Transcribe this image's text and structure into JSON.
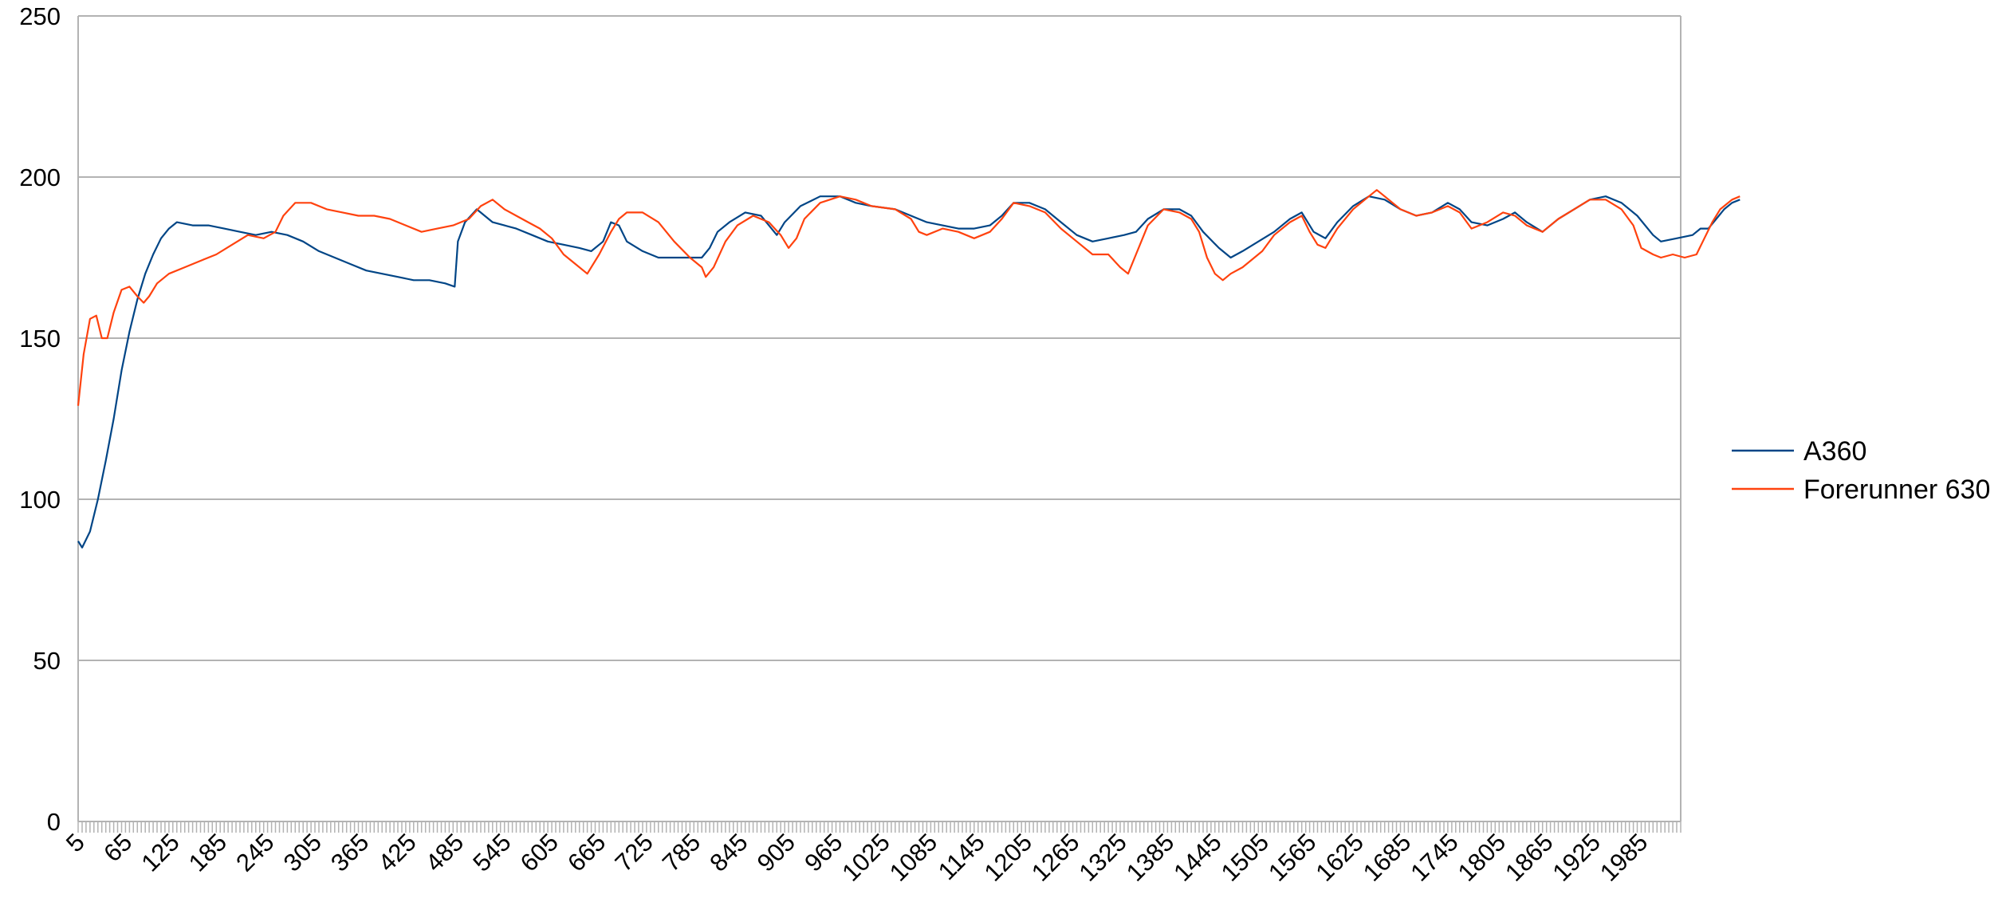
{
  "chart_data": {
    "type": "line",
    "title": "",
    "xlabel": "",
    "ylabel": "",
    "ylim": [
      0,
      250
    ],
    "yticks": [
      0,
      50,
      100,
      150,
      200,
      250
    ],
    "xlim": [
      5,
      2035
    ],
    "xtick_labels": [
      "5",
      "65",
      "125",
      "185",
      "245",
      "305",
      "365",
      "425",
      "485",
      "545",
      "605",
      "665",
      "725",
      "785",
      "845",
      "905",
      "965",
      "1025",
      "1085",
      "1145",
      "1205",
      "1265",
      "1325",
      "1385",
      "1445",
      "1505",
      "1565",
      "1625",
      "1685",
      "1745",
      "1805",
      "1865",
      "1925",
      "1985"
    ],
    "grid": true,
    "legend_position": "right",
    "series": [
      {
        "name": "A360",
        "color": "#004586",
        "points": [
          [
            5,
            87
          ],
          [
            10,
            85
          ],
          [
            20,
            90
          ],
          [
            30,
            100
          ],
          [
            40,
            112
          ],
          [
            50,
            125
          ],
          [
            60,
            140
          ],
          [
            70,
            152
          ],
          [
            80,
            162
          ],
          [
            90,
            170
          ],
          [
            100,
            176
          ],
          [
            110,
            181
          ],
          [
            120,
            184
          ],
          [
            130,
            186
          ],
          [
            150,
            185
          ],
          [
            170,
            185
          ],
          [
            190,
            184
          ],
          [
            210,
            183
          ],
          [
            230,
            182
          ],
          [
            250,
            183
          ],
          [
            270,
            182
          ],
          [
            290,
            180
          ],
          [
            310,
            177
          ],
          [
            330,
            175
          ],
          [
            350,
            173
          ],
          [
            370,
            171
          ],
          [
            390,
            170
          ],
          [
            410,
            169
          ],
          [
            430,
            168
          ],
          [
            450,
            168
          ],
          [
            470,
            167
          ],
          [
            482,
            166
          ],
          [
            486,
            180
          ],
          [
            495,
            186
          ],
          [
            510,
            190
          ],
          [
            520,
            188
          ],
          [
            530,
            186
          ],
          [
            545,
            185
          ],
          [
            560,
            184
          ],
          [
            580,
            182
          ],
          [
            600,
            180
          ],
          [
            620,
            179
          ],
          [
            640,
            178
          ],
          [
            655,
            177
          ],
          [
            670,
            180
          ],
          [
            680,
            186
          ],
          [
            690,
            185
          ],
          [
            700,
            180
          ],
          [
            720,
            177
          ],
          [
            740,
            175
          ],
          [
            760,
            175
          ],
          [
            780,
            175
          ],
          [
            795,
            175
          ],
          [
            805,
            178
          ],
          [
            815,
            183
          ],
          [
            830,
            186
          ],
          [
            850,
            189
          ],
          [
            870,
            188
          ],
          [
            880,
            185
          ],
          [
            890,
            182
          ],
          [
            900,
            186
          ],
          [
            920,
            191
          ],
          [
            945,
            194
          ],
          [
            970,
            194
          ],
          [
            990,
            192
          ],
          [
            1010,
            191
          ],
          [
            1040,
            190
          ],
          [
            1060,
            188
          ],
          [
            1080,
            186
          ],
          [
            1100,
            185
          ],
          [
            1120,
            184
          ],
          [
            1140,
            184
          ],
          [
            1160,
            185
          ],
          [
            1175,
            188
          ],
          [
            1190,
            192
          ],
          [
            1210,
            192
          ],
          [
            1230,
            190
          ],
          [
            1250,
            186
          ],
          [
            1270,
            182
          ],
          [
            1290,
            180
          ],
          [
            1310,
            181
          ],
          [
            1330,
            182
          ],
          [
            1345,
            183
          ],
          [
            1360,
            187
          ],
          [
            1380,
            190
          ],
          [
            1400,
            190
          ],
          [
            1415,
            188
          ],
          [
            1430,
            183
          ],
          [
            1450,
            178
          ],
          [
            1465,
            175
          ],
          [
            1480,
            177
          ],
          [
            1500,
            180
          ],
          [
            1520,
            183
          ],
          [
            1540,
            187
          ],
          [
            1555,
            189
          ],
          [
            1570,
            183
          ],
          [
            1585,
            181
          ],
          [
            1600,
            186
          ],
          [
            1620,
            191
          ],
          [
            1640,
            194
          ],
          [
            1660,
            193
          ],
          [
            1680,
            190
          ],
          [
            1700,
            188
          ],
          [
            1720,
            189
          ],
          [
            1740,
            192
          ],
          [
            1755,
            190
          ],
          [
            1770,
            186
          ],
          [
            1790,
            185
          ],
          [
            1810,
            187
          ],
          [
            1825,
            189
          ],
          [
            1840,
            186
          ],
          [
            1860,
            183
          ],
          [
            1880,
            187
          ],
          [
            1900,
            190
          ],
          [
            1920,
            193
          ],
          [
            1940,
            194
          ],
          [
            1960,
            192
          ],
          [
            1980,
            188
          ],
          [
            2000,
            182
          ],
          [
            2010,
            180
          ],
          [
            2030,
            181
          ],
          [
            2050,
            182
          ],
          [
            2060,
            184
          ],
          [
            2070,
            184
          ],
          [
            2080,
            187
          ],
          [
            2090,
            190
          ],
          [
            2100,
            192
          ],
          [
            2110,
            193
          ]
        ]
      },
      {
        "name": "Forerunner 630",
        "color": "#ff420e",
        "points": [
          [
            5,
            129
          ],
          [
            12,
            145
          ],
          [
            20,
            156
          ],
          [
            28,
            157
          ],
          [
            35,
            150
          ],
          [
            42,
            150
          ],
          [
            50,
            158
          ],
          [
            60,
            165
          ],
          [
            70,
            166
          ],
          [
            80,
            163
          ],
          [
            88,
            161
          ],
          [
            95,
            163
          ],
          [
            105,
            167
          ],
          [
            120,
            170
          ],
          [
            140,
            172
          ],
          [
            160,
            174
          ],
          [
            180,
            176
          ],
          [
            200,
            179
          ],
          [
            220,
            182
          ],
          [
            240,
            181
          ],
          [
            255,
            183
          ],
          [
            265,
            188
          ],
          [
            280,
            192
          ],
          [
            300,
            192
          ],
          [
            320,
            190
          ],
          [
            340,
            189
          ],
          [
            360,
            188
          ],
          [
            380,
            188
          ],
          [
            400,
            187
          ],
          [
            420,
            185
          ],
          [
            440,
            183
          ],
          [
            460,
            184
          ],
          [
            480,
            185
          ],
          [
            500,
            187
          ],
          [
            515,
            191
          ],
          [
            530,
            193
          ],
          [
            545,
            190
          ],
          [
            560,
            188
          ],
          [
            575,
            186
          ],
          [
            590,
            184
          ],
          [
            605,
            181
          ],
          [
            620,
            176
          ],
          [
            635,
            173
          ],
          [
            650,
            170
          ],
          [
            665,
            176
          ],
          [
            680,
            183
          ],
          [
            690,
            187
          ],
          [
            700,
            189
          ],
          [
            720,
            189
          ],
          [
            740,
            186
          ],
          [
            760,
            180
          ],
          [
            780,
            175
          ],
          [
            795,
            172
          ],
          [
            800,
            169
          ],
          [
            810,
            172
          ],
          [
            825,
            180
          ],
          [
            840,
            185
          ],
          [
            860,
            188
          ],
          [
            880,
            186
          ],
          [
            895,
            182
          ],
          [
            905,
            178
          ],
          [
            915,
            181
          ],
          [
            925,
            187
          ],
          [
            945,
            192
          ],
          [
            970,
            194
          ],
          [
            990,
            193
          ],
          [
            1010,
            191
          ],
          [
            1040,
            190
          ],
          [
            1060,
            187
          ],
          [
            1070,
            183
          ],
          [
            1080,
            182
          ],
          [
            1100,
            184
          ],
          [
            1120,
            183
          ],
          [
            1140,
            181
          ],
          [
            1160,
            183
          ],
          [
            1175,
            187
          ],
          [
            1190,
            192
          ],
          [
            1210,
            191
          ],
          [
            1230,
            189
          ],
          [
            1250,
            184
          ],
          [
            1270,
            180
          ],
          [
            1290,
            176
          ],
          [
            1310,
            176
          ],
          [
            1325,
            172
          ],
          [
            1335,
            170
          ],
          [
            1345,
            176
          ],
          [
            1360,
            185
          ],
          [
            1380,
            190
          ],
          [
            1400,
            189
          ],
          [
            1415,
            187
          ],
          [
            1425,
            183
          ],
          [
            1435,
            175
          ],
          [
            1445,
            170
          ],
          [
            1455,
            168
          ],
          [
            1465,
            170
          ],
          [
            1480,
            172
          ],
          [
            1495,
            175
          ],
          [
            1505,
            177
          ],
          [
            1520,
            182
          ],
          [
            1540,
            186
          ],
          [
            1555,
            188
          ],
          [
            1565,
            183
          ],
          [
            1575,
            179
          ],
          [
            1585,
            178
          ],
          [
            1600,
            184
          ],
          [
            1620,
            190
          ],
          [
            1640,
            194
          ],
          [
            1650,
            196
          ],
          [
            1660,
            194
          ],
          [
            1680,
            190
          ],
          [
            1700,
            188
          ],
          [
            1720,
            189
          ],
          [
            1740,
            191
          ],
          [
            1755,
            189
          ],
          [
            1770,
            184
          ],
          [
            1790,
            186
          ],
          [
            1810,
            189
          ],
          [
            1825,
            188
          ],
          [
            1840,
            185
          ],
          [
            1860,
            183
          ],
          [
            1880,
            187
          ],
          [
            1900,
            190
          ],
          [
            1920,
            193
          ],
          [
            1940,
            193
          ],
          [
            1960,
            190
          ],
          [
            1975,
            185
          ],
          [
            1985,
            178
          ],
          [
            2000,
            176
          ],
          [
            2010,
            175
          ],
          [
            2025,
            176
          ],
          [
            2040,
            175
          ],
          [
            2055,
            176
          ],
          [
            2065,
            181
          ],
          [
            2075,
            186
          ],
          [
            2085,
            190
          ],
          [
            2100,
            193
          ],
          [
            2110,
            194
          ]
        ]
      }
    ]
  }
}
